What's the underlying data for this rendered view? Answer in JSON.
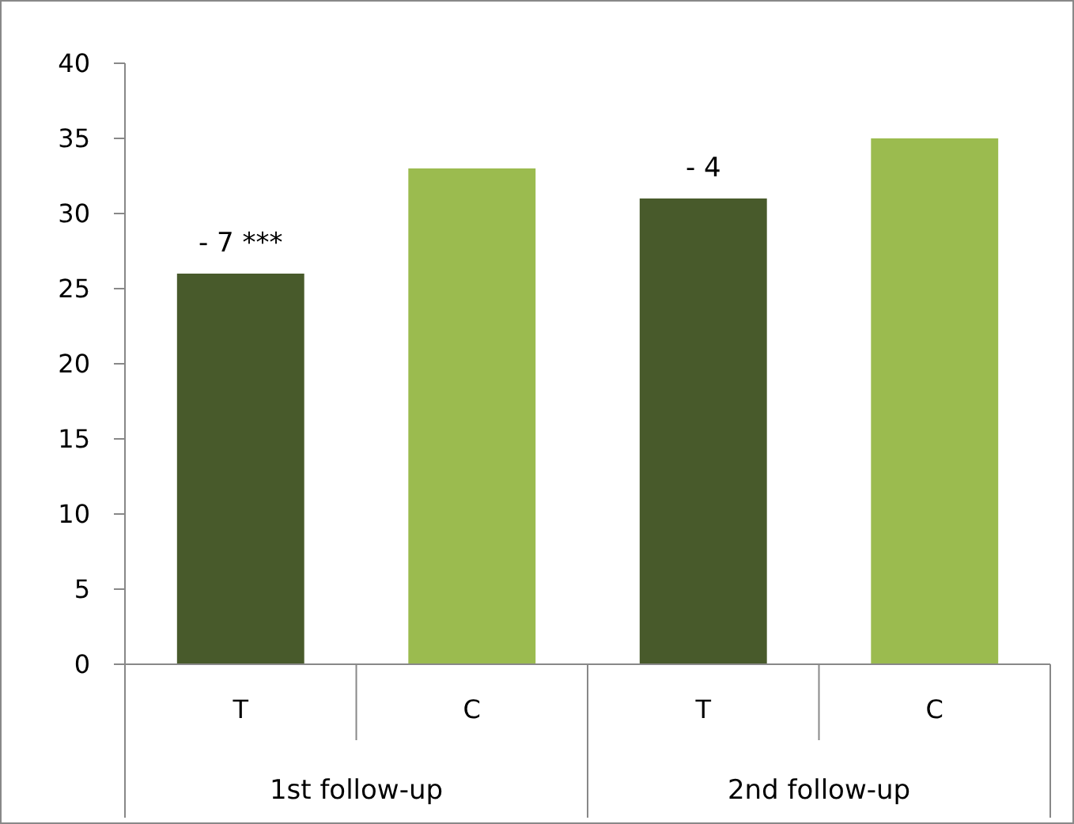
{
  "chart_data": {
    "type": "bar",
    "categories": [
      "T",
      "C",
      "T",
      "C"
    ],
    "values": [
      26,
      33,
      31,
      35
    ],
    "colors": [
      "#485a2b",
      "#9bbb4f",
      "#485a2b",
      "#9bbb4f"
    ],
    "annotations": [
      "- 7 ***",
      "- 4",
      "1st follow-up",
      "2nd follow-up"
    ],
    "ylim": [
      0,
      40
    ],
    "yticks": [
      0,
      5,
      10,
      15,
      20,
      25,
      30,
      35,
      40
    ],
    "grid": false
  }
}
